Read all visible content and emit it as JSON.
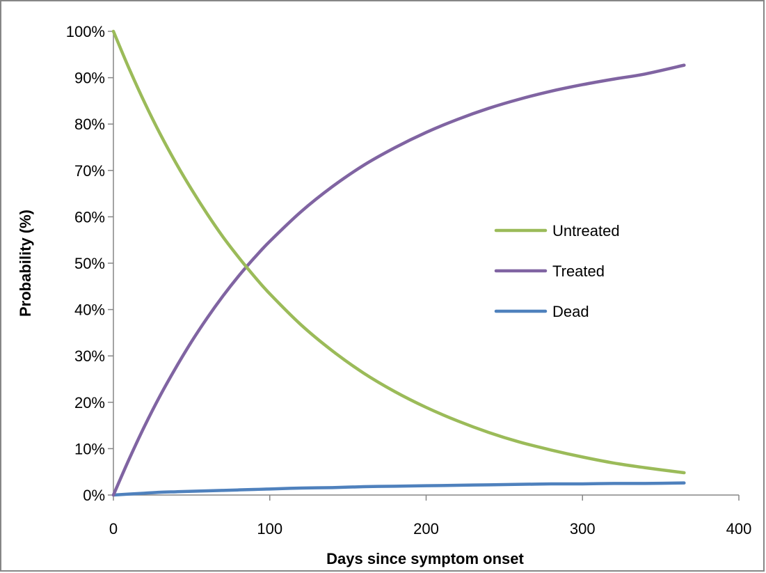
{
  "chart_data": {
    "type": "line",
    "title": "",
    "xlabel": "Days since symptom onset",
    "ylabel": "Probability (%)",
    "xlim": [
      0,
      400
    ],
    "ylim": [
      0,
      1
    ],
    "x_ticks": [
      0,
      100,
      200,
      300,
      400
    ],
    "x_tick_labels": [
      "0",
      "100",
      "200",
      "300",
      "400"
    ],
    "y_ticks": [
      0,
      0.1,
      0.2,
      0.3,
      0.4,
      0.5,
      0.6,
      0.7,
      0.8,
      0.9,
      1.0
    ],
    "y_tick_labels": [
      "0%",
      "10%",
      "20%",
      "30%",
      "40%",
      "50%",
      "60%",
      "70%",
      "80%",
      "90%",
      "100%"
    ],
    "grid": false,
    "legend_position": "center-right",
    "series": [
      {
        "name": "Untreated",
        "color": "#9BBB59",
        "x": [
          0,
          10,
          20,
          30,
          40,
          50,
          60,
          70,
          80,
          90,
          100,
          120,
          140,
          160,
          180,
          200,
          220,
          240,
          260,
          280,
          300,
          320,
          340,
          365
        ],
        "y": [
          1.0,
          0.92,
          0.846,
          0.778,
          0.716,
          0.659,
          0.606,
          0.557,
          0.513,
          0.472,
          0.434,
          0.367,
          0.311,
          0.263,
          0.223,
          0.189,
          0.16,
          0.135,
          0.114,
          0.097,
          0.082,
          0.069,
          0.059,
          0.048
        ]
      },
      {
        "name": "Treated",
        "color": "#8064A2",
        "x": [
          0,
          10,
          20,
          30,
          40,
          50,
          60,
          70,
          80,
          90,
          100,
          120,
          140,
          160,
          180,
          200,
          220,
          240,
          260,
          280,
          300,
          320,
          340,
          365
        ],
        "y": [
          0.0,
          0.077,
          0.149,
          0.215,
          0.275,
          0.331,
          0.382,
          0.429,
          0.472,
          0.511,
          0.547,
          0.611,
          0.665,
          0.711,
          0.749,
          0.782,
          0.81,
          0.834,
          0.854,
          0.871,
          0.885,
          0.897,
          0.908,
          0.927
        ]
      },
      {
        "name": "Dead",
        "color": "#4F81BD",
        "x": [
          0,
          10,
          20,
          30,
          40,
          50,
          60,
          70,
          80,
          90,
          100,
          120,
          140,
          160,
          180,
          200,
          220,
          240,
          260,
          280,
          300,
          320,
          340,
          365
        ],
        "y": [
          0.0,
          0.002,
          0.004,
          0.006,
          0.007,
          0.008,
          0.009,
          0.01,
          0.011,
          0.012,
          0.013,
          0.015,
          0.016,
          0.018,
          0.019,
          0.02,
          0.021,
          0.022,
          0.023,
          0.024,
          0.024,
          0.025,
          0.025,
          0.026
        ]
      }
    ]
  }
}
